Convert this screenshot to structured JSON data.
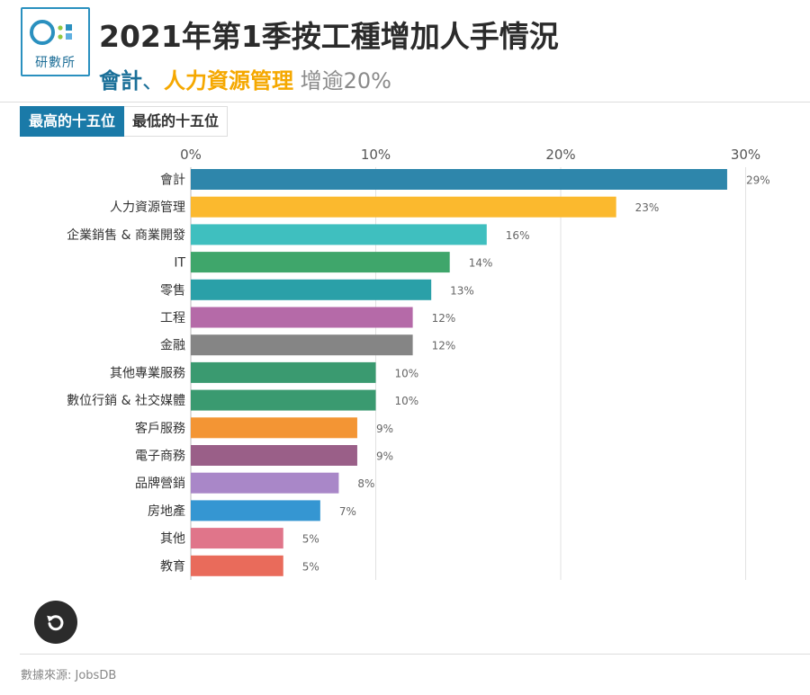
{
  "logo": {
    "text": "研數所",
    "colors": {
      "ring": "#2a90bf",
      "dots": [
        "#8fc840",
        "#2a90bf",
        "#5fb0e0",
        "#8fc840"
      ]
    }
  },
  "header": {
    "title": "2021年第1季按工種增加人手情況",
    "subtitle": {
      "part_a": "會計",
      "separator": "、",
      "part_b": "人力資源管理",
      "part_c": "增逾20%"
    }
  },
  "tabs": [
    {
      "label": "最高的十五位",
      "active": true
    },
    {
      "label": "最低的十五位",
      "active": false
    }
  ],
  "chart_data": {
    "type": "bar",
    "orientation": "horizontal",
    "categories": [
      "會計",
      "人力資源管理",
      "企業銷售 & 商業開發",
      "IT",
      "零售",
      "工程",
      "金融",
      "其他專業服務",
      "數位行銷 & 社交媒體",
      "客戶服務",
      "電子商務",
      "品牌營銷",
      "房地產",
      "其他",
      "教育"
    ],
    "values": [
      29,
      23,
      16,
      14,
      13,
      12,
      12,
      10,
      10,
      9,
      9,
      8,
      7,
      5,
      5
    ],
    "value_labels": [
      "29%",
      "23%",
      "16%",
      "14%",
      "13%",
      "12%",
      "12%",
      "10%",
      "10%",
      "9%",
      "9%",
      "8%",
      "7%",
      "5%",
      "5%"
    ],
    "colors": [
      "#2e86ab",
      "#fbb92e",
      "#3fbfbf",
      "#3fa66b",
      "#2aa0a8",
      "#b56aa8",
      "#858585",
      "#3a9a70",
      "#3a9a70",
      "#f39534",
      "#9a5f88",
      "#a987c8",
      "#3596d2",
      "#e0758a",
      "#e96b5b"
    ],
    "xlim": [
      0,
      30
    ],
    "x_ticks": [
      0,
      10,
      20,
      30
    ],
    "x_tick_labels": [
      "0%",
      "10%",
      "20%",
      "30%"
    ],
    "axis_position": "top",
    "grid": true,
    "legend": "none"
  },
  "footer": {
    "source": "數據來源: JobsDB"
  }
}
